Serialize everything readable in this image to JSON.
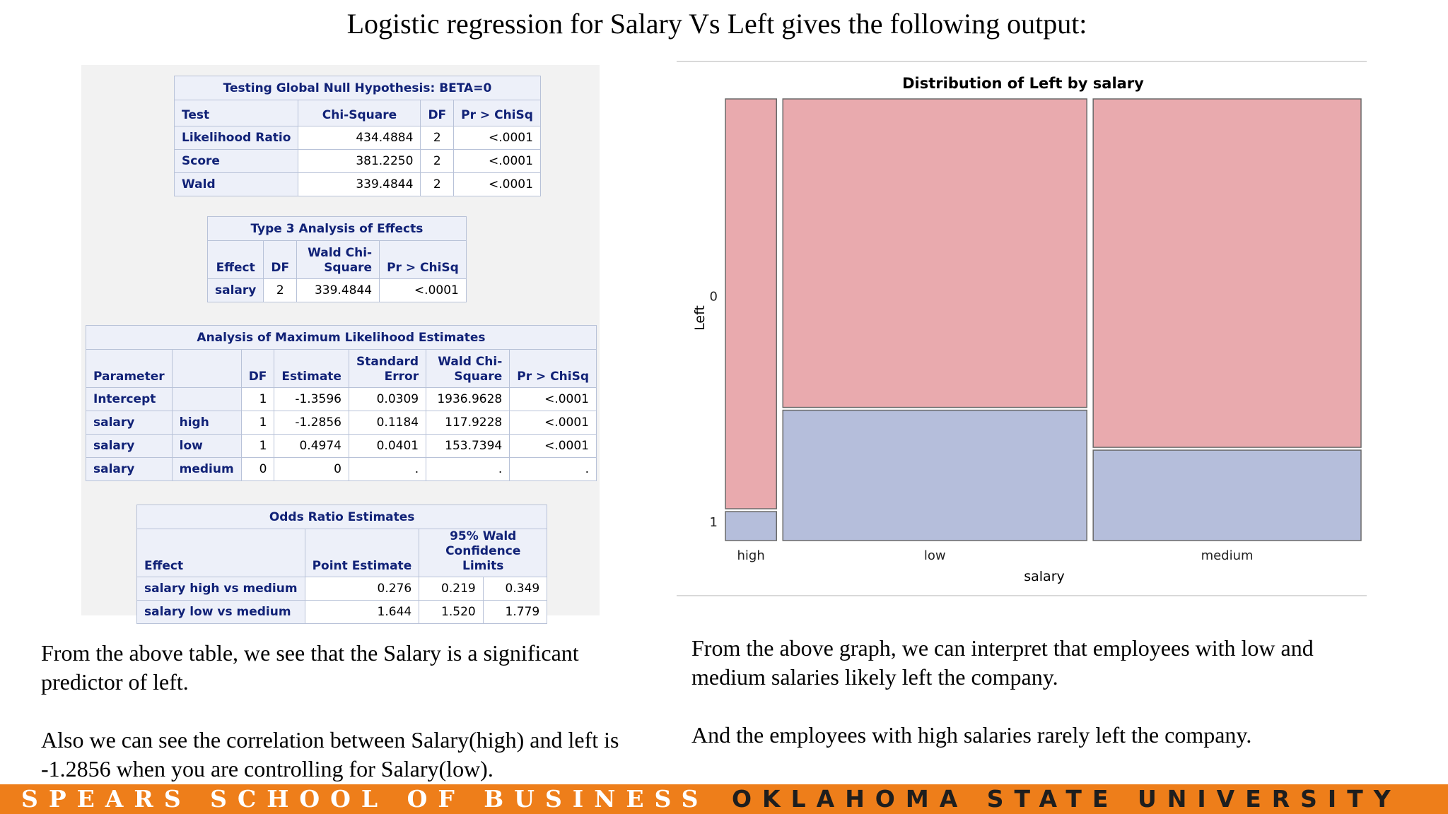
{
  "title": "Logistic regression for Salary Vs Left gives the following output:",
  "global_test": {
    "caption": "Testing Global Null Hypothesis: BETA=0",
    "headers": [
      "Test",
      "Chi-Square",
      "DF",
      "Pr > ChiSq"
    ],
    "rows": [
      [
        "Likelihood Ratio",
        "434.4884",
        "2",
        "<.0001"
      ],
      [
        "Score",
        "381.2250",
        "2",
        "<.0001"
      ],
      [
        "Wald",
        "339.4844",
        "2",
        "<.0001"
      ]
    ]
  },
  "type3": {
    "caption": "Type 3 Analysis of Effects",
    "headers": [
      "Effect",
      "DF",
      "Wald Chi-Square",
      "Pr > ChiSq"
    ],
    "rows": [
      [
        "salary",
        "2",
        "339.4844",
        "<.0001"
      ]
    ]
  },
  "mle": {
    "caption": "Analysis of Maximum Likelihood Estimates",
    "headers": [
      "Parameter",
      "",
      "DF",
      "Estimate",
      "Standard Error",
      "Wald Chi-Square",
      "Pr > ChiSq"
    ],
    "rows": [
      [
        "Intercept",
        "",
        "1",
        "-1.3596",
        "0.0309",
        "1936.9628",
        "<.0001"
      ],
      [
        "salary",
        "high",
        "1",
        "-1.2856",
        "0.1184",
        "117.9228",
        "<.0001"
      ],
      [
        "salary",
        "low",
        "1",
        "0.4974",
        "0.0401",
        "153.7394",
        "<.0001"
      ],
      [
        "salary",
        "medium",
        "0",
        "0",
        ".",
        ".",
        "."
      ]
    ]
  },
  "odds": {
    "caption": "Odds Ratio Estimates",
    "headers": [
      "Effect",
      "Point Estimate",
      "95% Wald Confidence Limits"
    ],
    "rows": [
      [
        "salary high vs medium",
        "0.276",
        "0.219",
        "0.349"
      ],
      [
        "salary low vs medium",
        "1.644",
        "1.520",
        "1.779"
      ]
    ]
  },
  "chart_data": {
    "type": "mosaic",
    "title": "Distribution of Left by salary",
    "xlabel": "salary",
    "ylabel": "Left",
    "categories": [
      "high",
      "low",
      "medium"
    ],
    "category_share": [
      0.082,
      0.488,
      0.43
    ],
    "series": [
      {
        "name": "0",
        "share": [
          0.934,
          0.703,
          0.794
        ],
        "color": "#e9aaae"
      },
      {
        "name": "1",
        "share": [
          0.066,
          0.297,
          0.206
        ],
        "color": "#b5bedb"
      }
    ],
    "border_color": "#6a6a6a"
  },
  "notes_left": [
    "From the above table, we see that the Salary is a significant predictor of left.",
    "Also we can see the correlation between Salary(high) and left is -1.2856 when you are controlling for Salary(low)."
  ],
  "notes_right": [
    "From the above graph, we can interpret that employees with low and medium salaries likely left the company.",
    "And the employees with high salaries rarely left the company."
  ],
  "footer": {
    "school": "SPEARS SCHOOL OF BUSINESS",
    "university": "OKLAHOMA STATE UNIVERSITY",
    "color": "#ee7e1a"
  }
}
